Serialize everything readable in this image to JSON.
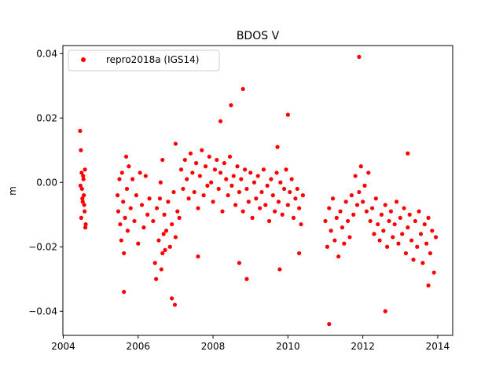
{
  "chart_data": {
    "type": "scatter",
    "title": "BDOS V",
    "xlabel": "",
    "ylabel": "m",
    "xlim": [
      2003.99,
      2014.4
    ],
    "ylim": [
      -0.0475,
      0.0425
    ],
    "xticks": [
      2004,
      2006,
      2008,
      2010,
      2012,
      2014
    ],
    "xtick_labels": [
      "2004",
      "2006",
      "2008",
      "2010",
      "2012",
      "2014"
    ],
    "yticks": [
      -0.04,
      -0.02,
      0.0,
      0.02,
      0.04
    ],
    "ytick_labels": [
      "−0.04",
      "−0.02",
      "0.00",
      "0.02",
      "0.04"
    ],
    "grid": false,
    "legend_position": "upper-left",
    "series": [
      {
        "name": "repro2018a (IGS14)",
        "color": "#ff0000",
        "marker": "circle",
        "x": [
          2004.45,
          2004.47,
          2004.49,
          2004.5,
          2004.52,
          2004.54,
          2004.55,
          2004.57,
          2004.58,
          2004.6,
          2004.48,
          2004.53,
          2004.56,
          2004.59,
          2004.46,
          2004.51,
          2005.45,
          2005.47,
          2005.5,
          2005.52,
          2005.55,
          2005.57,
          2005.6,
          2005.62,
          2005.65,
          2005.68,
          2005.7,
          2005.72,
          2005.75,
          2005.8,
          2005.85,
          2005.9,
          2005.95,
          2006.0,
          2006.05,
          2006.1,
          2006.15,
          2006.2,
          2006.25,
          2006.3,
          2006.4,
          2006.45,
          2006.5,
          2006.55,
          2006.6,
          2006.65,
          2006.7,
          2006.75,
          2006.8,
          2006.85,
          2006.9,
          2006.95,
          2007.0,
          2007.05,
          2007.1,
          2006.48,
          2006.58,
          2006.62,
          2006.68,
          2006.72,
          2007.15,
          2007.2,
          2007.25,
          2007.3,
          2007.35,
          2007.4,
          2007.45,
          2007.5,
          2007.55,
          2007.6,
          2007.65,
          2007.7,
          2007.75,
          2007.8,
          2007.85,
          2007.9,
          2007.95,
          2008.0,
          2008.05,
          2008.1,
          2008.15,
          2008.2,
          2008.25,
          2008.3,
          2008.35,
          2008.4,
          2008.45,
          2008.5,
          2008.55,
          2008.6,
          2008.65,
          2008.7,
          2008.75,
          2008.8,
          2008.85,
          2008.9,
          2008.95,
          2009.0,
          2009.05,
          2009.1,
          2009.15,
          2009.2,
          2009.25,
          2009.3,
          2009.35,
          2009.4,
          2009.45,
          2009.5,
          2009.55,
          2009.6,
          2009.65,
          2009.7,
          2009.75,
          2009.8,
          2009.85,
          2009.9,
          2009.95,
          2010.0,
          2010.05,
          2010.1,
          2010.15,
          2010.2,
          2010.25,
          2010.3,
          2010.35,
          2010.4,
          2011.0,
          2011.05,
          2011.1,
          2011.15,
          2011.2,
          2011.25,
          2011.3,
          2011.35,
          2011.4,
          2011.45,
          2011.5,
          2011.55,
          2011.6,
          2011.65,
          2011.7,
          2011.75,
          2011.8,
          2011.85,
          2011.9,
          2011.95,
          2012.0,
          2012.05,
          2012.1,
          2012.15,
          2012.2,
          2012.25,
          2012.3,
          2012.35,
          2012.4,
          2012.45,
          2012.5,
          2012.55,
          2012.6,
          2012.65,
          2012.7,
          2012.75,
          2012.8,
          2012.85,
          2012.9,
          2012.95,
          2013.0,
          2013.05,
          2013.1,
          2013.15,
          2013.2,
          2013.25,
          2013.3,
          2013.35,
          2013.4,
          2013.45,
          2013.5,
          2013.55,
          2013.6,
          2013.65,
          2013.7,
          2013.75,
          2013.8,
          2013.85,
          2013.9,
          2013.95,
          2005.62,
          2006.98,
          2006.9,
          2008.48,
          2008.8,
          2009.78,
          2010.0,
          2011.9,
          2011.1,
          2012.6,
          2013.2,
          2009.72,
          2008.9,
          2007.0,
          2006.65,
          2013.75,
          2010.3,
          2008.2,
          2008.7,
          2007.6
        ],
        "y": [
          0.016,
          0.01,
          0.003,
          -0.002,
          -0.006,
          0.001,
          -0.004,
          -0.009,
          0.004,
          -0.013,
          -0.011,
          0.002,
          -0.007,
          -0.014,
          -0.001,
          -0.005,
          -0.004,
          -0.009,
          0.001,
          -0.013,
          -0.018,
          0.003,
          -0.006,
          -0.022,
          -0.011,
          0.008,
          -0.002,
          -0.015,
          0.005,
          -0.008,
          0.001,
          -0.012,
          -0.004,
          -0.019,
          0.003,
          -0.007,
          -0.014,
          0.002,
          -0.01,
          -0.005,
          -0.012,
          -0.025,
          -0.008,
          -0.018,
          0.0,
          -0.022,
          -0.01,
          -0.015,
          -0.006,
          -0.02,
          -0.013,
          -0.003,
          -0.017,
          -0.009,
          -0.011,
          -0.03,
          -0.005,
          -0.027,
          -0.016,
          -0.021,
          0.004,
          -0.002,
          0.007,
          0.001,
          -0.005,
          0.009,
          0.003,
          -0.003,
          0.006,
          -0.008,
          0.002,
          0.01,
          -0.004,
          0.005,
          -0.001,
          0.008,
          0.0,
          -0.006,
          0.004,
          0.007,
          -0.002,
          0.003,
          -0.009,
          0.006,
          0.001,
          -0.004,
          0.008,
          -0.001,
          0.002,
          -0.007,
          0.005,
          -0.003,
          0.001,
          -0.009,
          0.004,
          -0.002,
          -0.006,
          0.003,
          -0.011,
          0.0,
          -0.005,
          0.002,
          -0.008,
          -0.003,
          0.004,
          -0.007,
          -0.001,
          -0.012,
          0.001,
          -0.004,
          -0.009,
          0.003,
          -0.006,
          0.0,
          -0.01,
          -0.002,
          0.004,
          -0.007,
          -0.003,
          0.001,
          -0.011,
          -0.005,
          -0.002,
          -0.008,
          -0.013,
          -0.004,
          -0.012,
          -0.02,
          -0.008,
          -0.015,
          -0.005,
          -0.018,
          -0.011,
          -0.023,
          -0.009,
          -0.014,
          -0.019,
          -0.006,
          -0.012,
          -0.017,
          -0.004,
          -0.01,
          0.002,
          -0.007,
          -0.003,
          0.005,
          -0.006,
          -0.001,
          -0.009,
          0.003,
          -0.012,
          -0.008,
          -0.016,
          -0.005,
          -0.013,
          -0.018,
          -0.01,
          -0.015,
          -0.007,
          -0.02,
          -0.012,
          -0.009,
          -0.017,
          -0.013,
          -0.006,
          -0.019,
          -0.011,
          -0.016,
          -0.008,
          -0.022,
          -0.014,
          -0.01,
          -0.018,
          -0.024,
          -0.012,
          -0.02,
          -0.009,
          -0.016,
          -0.025,
          -0.013,
          -0.019,
          -0.011,
          -0.022,
          -0.015,
          -0.028,
          -0.017,
          -0.034,
          -0.038,
          -0.036,
          0.024,
          0.029,
          -0.027,
          0.021,
          0.039,
          -0.044,
          -0.04,
          0.009,
          0.011,
          -0.03,
          0.012,
          0.007,
          -0.032,
          -0.022,
          0.019,
          -0.025,
          -0.023
        ]
      }
    ]
  }
}
